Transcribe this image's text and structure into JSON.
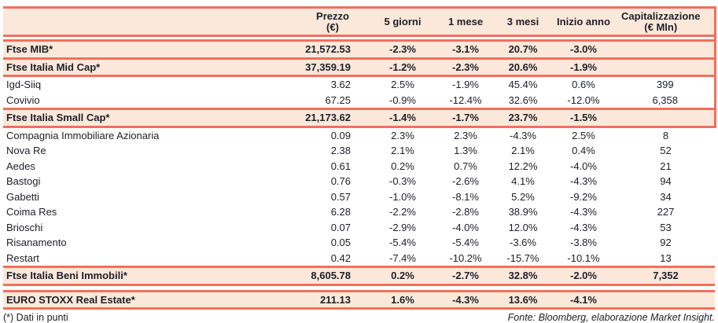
{
  "colors": {
    "accent": "#F1705C",
    "row_band": "#FBE8DA",
    "text": "#20212B"
  },
  "table": {
    "columns": [
      {
        "label": "",
        "sub": ""
      },
      {
        "label": "Prezzo",
        "sub": "(€)"
      },
      {
        "label": "5 giorni",
        "sub": ""
      },
      {
        "label": "1 mese",
        "sub": ""
      },
      {
        "label": "3 mesi",
        "sub": ""
      },
      {
        "label": "Inizio anno",
        "sub": ""
      },
      {
        "label": "Capitalizzazione",
        "sub": "(€ Mln)"
      }
    ],
    "sections": [
      {
        "rows": [
          {
            "name": "Ftse MIB*",
            "type": "index",
            "prezzo": "21,572.53",
            "g5": "-2.3%",
            "m1": "-3.1%",
            "m3": "20.7%",
            "ytd": "-3.0%",
            "cap": ""
          },
          {
            "name": "Ftse Italia Mid Cap*",
            "type": "index",
            "prezzo": "37,359.19",
            "g5": "-1.2%",
            "m1": "-2.3%",
            "m3": "20.6%",
            "ytd": "-1.9%",
            "cap": ""
          },
          {
            "name": "Igd-Siiq",
            "type": "stock",
            "prezzo": "3.62",
            "g5": "2.5%",
            "m1": "-1.9%",
            "m3": "45.4%",
            "ytd": "0.6%",
            "cap": "399"
          },
          {
            "name": "Covivio",
            "type": "stock",
            "prezzo": "67.25",
            "g5": "-0.9%",
            "m1": "-12.4%",
            "m3": "32.6%",
            "ytd": "-12.0%",
            "cap": "6,358"
          },
          {
            "name": "Ftse Italia Small Cap*",
            "type": "index",
            "prezzo": "21,173.62",
            "g5": "-1.4%",
            "m1": "-1.7%",
            "m3": "23.7%",
            "ytd": "-1.5%",
            "cap": ""
          },
          {
            "name": "Compagnia Immobiliare Azionaria",
            "type": "stock",
            "prezzo": "0.09",
            "g5": "2.3%",
            "m1": "2.3%",
            "m3": "-4.3%",
            "ytd": "2.5%",
            "cap": "8"
          },
          {
            "name": "Nova Re",
            "type": "stock",
            "prezzo": "2.38",
            "g5": "2.1%",
            "m1": "1.3%",
            "m3": "2.1%",
            "ytd": "0.4%",
            "cap": "52"
          },
          {
            "name": "Aedes",
            "type": "stock",
            "prezzo": "0.61",
            "g5": "0.2%",
            "m1": "0.7%",
            "m3": "12.2%",
            "ytd": "-4.0%",
            "cap": "21"
          },
          {
            "name": "Bastogi",
            "type": "stock",
            "prezzo": "0.76",
            "g5": "-0.3%",
            "m1": "-2.6%",
            "m3": "4.1%",
            "ytd": "-4.3%",
            "cap": "94"
          },
          {
            "name": "Gabetti",
            "type": "stock",
            "prezzo": "0.57",
            "g5": "-1.0%",
            "m1": "-8.1%",
            "m3": "5.2%",
            "ytd": "-9.2%",
            "cap": "34"
          },
          {
            "name": "Coima Res",
            "type": "stock",
            "prezzo": "6.28",
            "g5": "-2.2%",
            "m1": "-2.8%",
            "m3": "38.9%",
            "ytd": "-4.3%",
            "cap": "227"
          },
          {
            "name": "Brioschi",
            "type": "stock",
            "prezzo": "0.07",
            "g5": "-2.9%",
            "m1": "-4.0%",
            "m3": "12.0%",
            "ytd": "-4.3%",
            "cap": "53"
          },
          {
            "name": "Risanamento",
            "type": "stock",
            "prezzo": "0.05",
            "g5": "-5.4%",
            "m1": "-5.4%",
            "m3": "-3.6%",
            "ytd": "-3.8%",
            "cap": "92"
          },
          {
            "name": "Restart",
            "type": "stock",
            "prezzo": "0.42",
            "g5": "-7.4%",
            "m1": "-10.2%",
            "m3": "-15.7%",
            "ytd": "-10.1%",
            "cap": "13"
          },
          {
            "name": "Ftse Italia Beni Immobili*",
            "type": "index",
            "prezzo": "8,605.78",
            "g5": "0.2%",
            "m1": "-2.7%",
            "m3": "32.8%",
            "ytd": "-2.0%",
            "cap": "7,352"
          }
        ]
      },
      {
        "rows": [
          {
            "name": "EURO STOXX Real Estate*",
            "type": "index",
            "prezzo": "211.13",
            "g5": "1.6%",
            "m1": "-4.3%",
            "m3": "13.6%",
            "ytd": "-4.1%",
            "cap": ""
          }
        ]
      }
    ]
  },
  "page": {
    "footnote": "(*) Dati in punti",
    "source": "Fonte: Bloomberg, elaborazione Market Insight."
  }
}
